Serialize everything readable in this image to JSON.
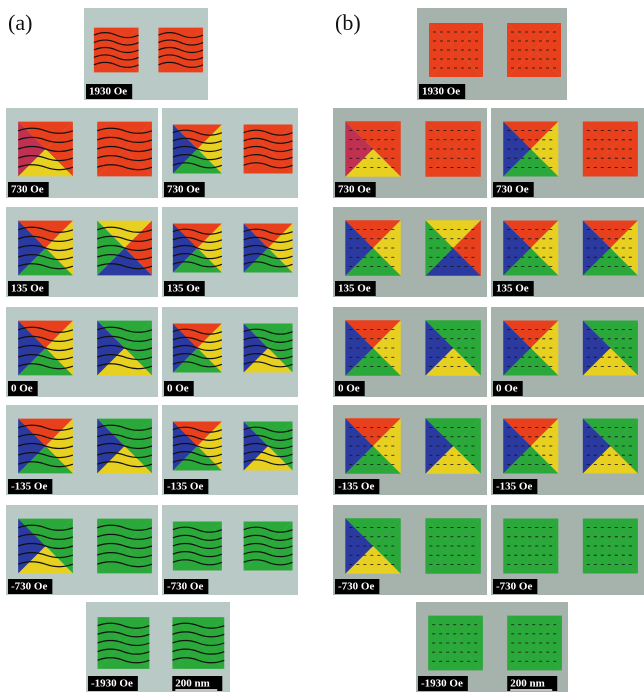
{
  "panel_a": {
    "label": "(a)",
    "top": "1930 Oe",
    "rows": [
      [
        "730 Oe",
        "730 Oe"
      ],
      [
        "135 Oe",
        "135  Oe"
      ],
      [
        "0 Oe",
        "0 Oe"
      ],
      [
        "-135 Oe",
        "-135 Oe"
      ],
      [
        "-730 Oe",
        "-730 Oe"
      ]
    ],
    "bottom": "-1930 Oe",
    "scale": "200 nm"
  },
  "panel_b": {
    "label": "(b)",
    "top": "1930 Oe",
    "rows": [
      [
        "730 Oe",
        "730  Oe"
      ],
      [
        "135 Oe",
        "135  Oe"
      ],
      [
        "0 Oe",
        "0 Oe"
      ],
      [
        "-135 Oe",
        "-135 Oe"
      ],
      [
        "-730 Oe",
        "-730 Oe"
      ]
    ],
    "bottom": "-1930 Oe",
    "scale": "200 nm"
  }
}
